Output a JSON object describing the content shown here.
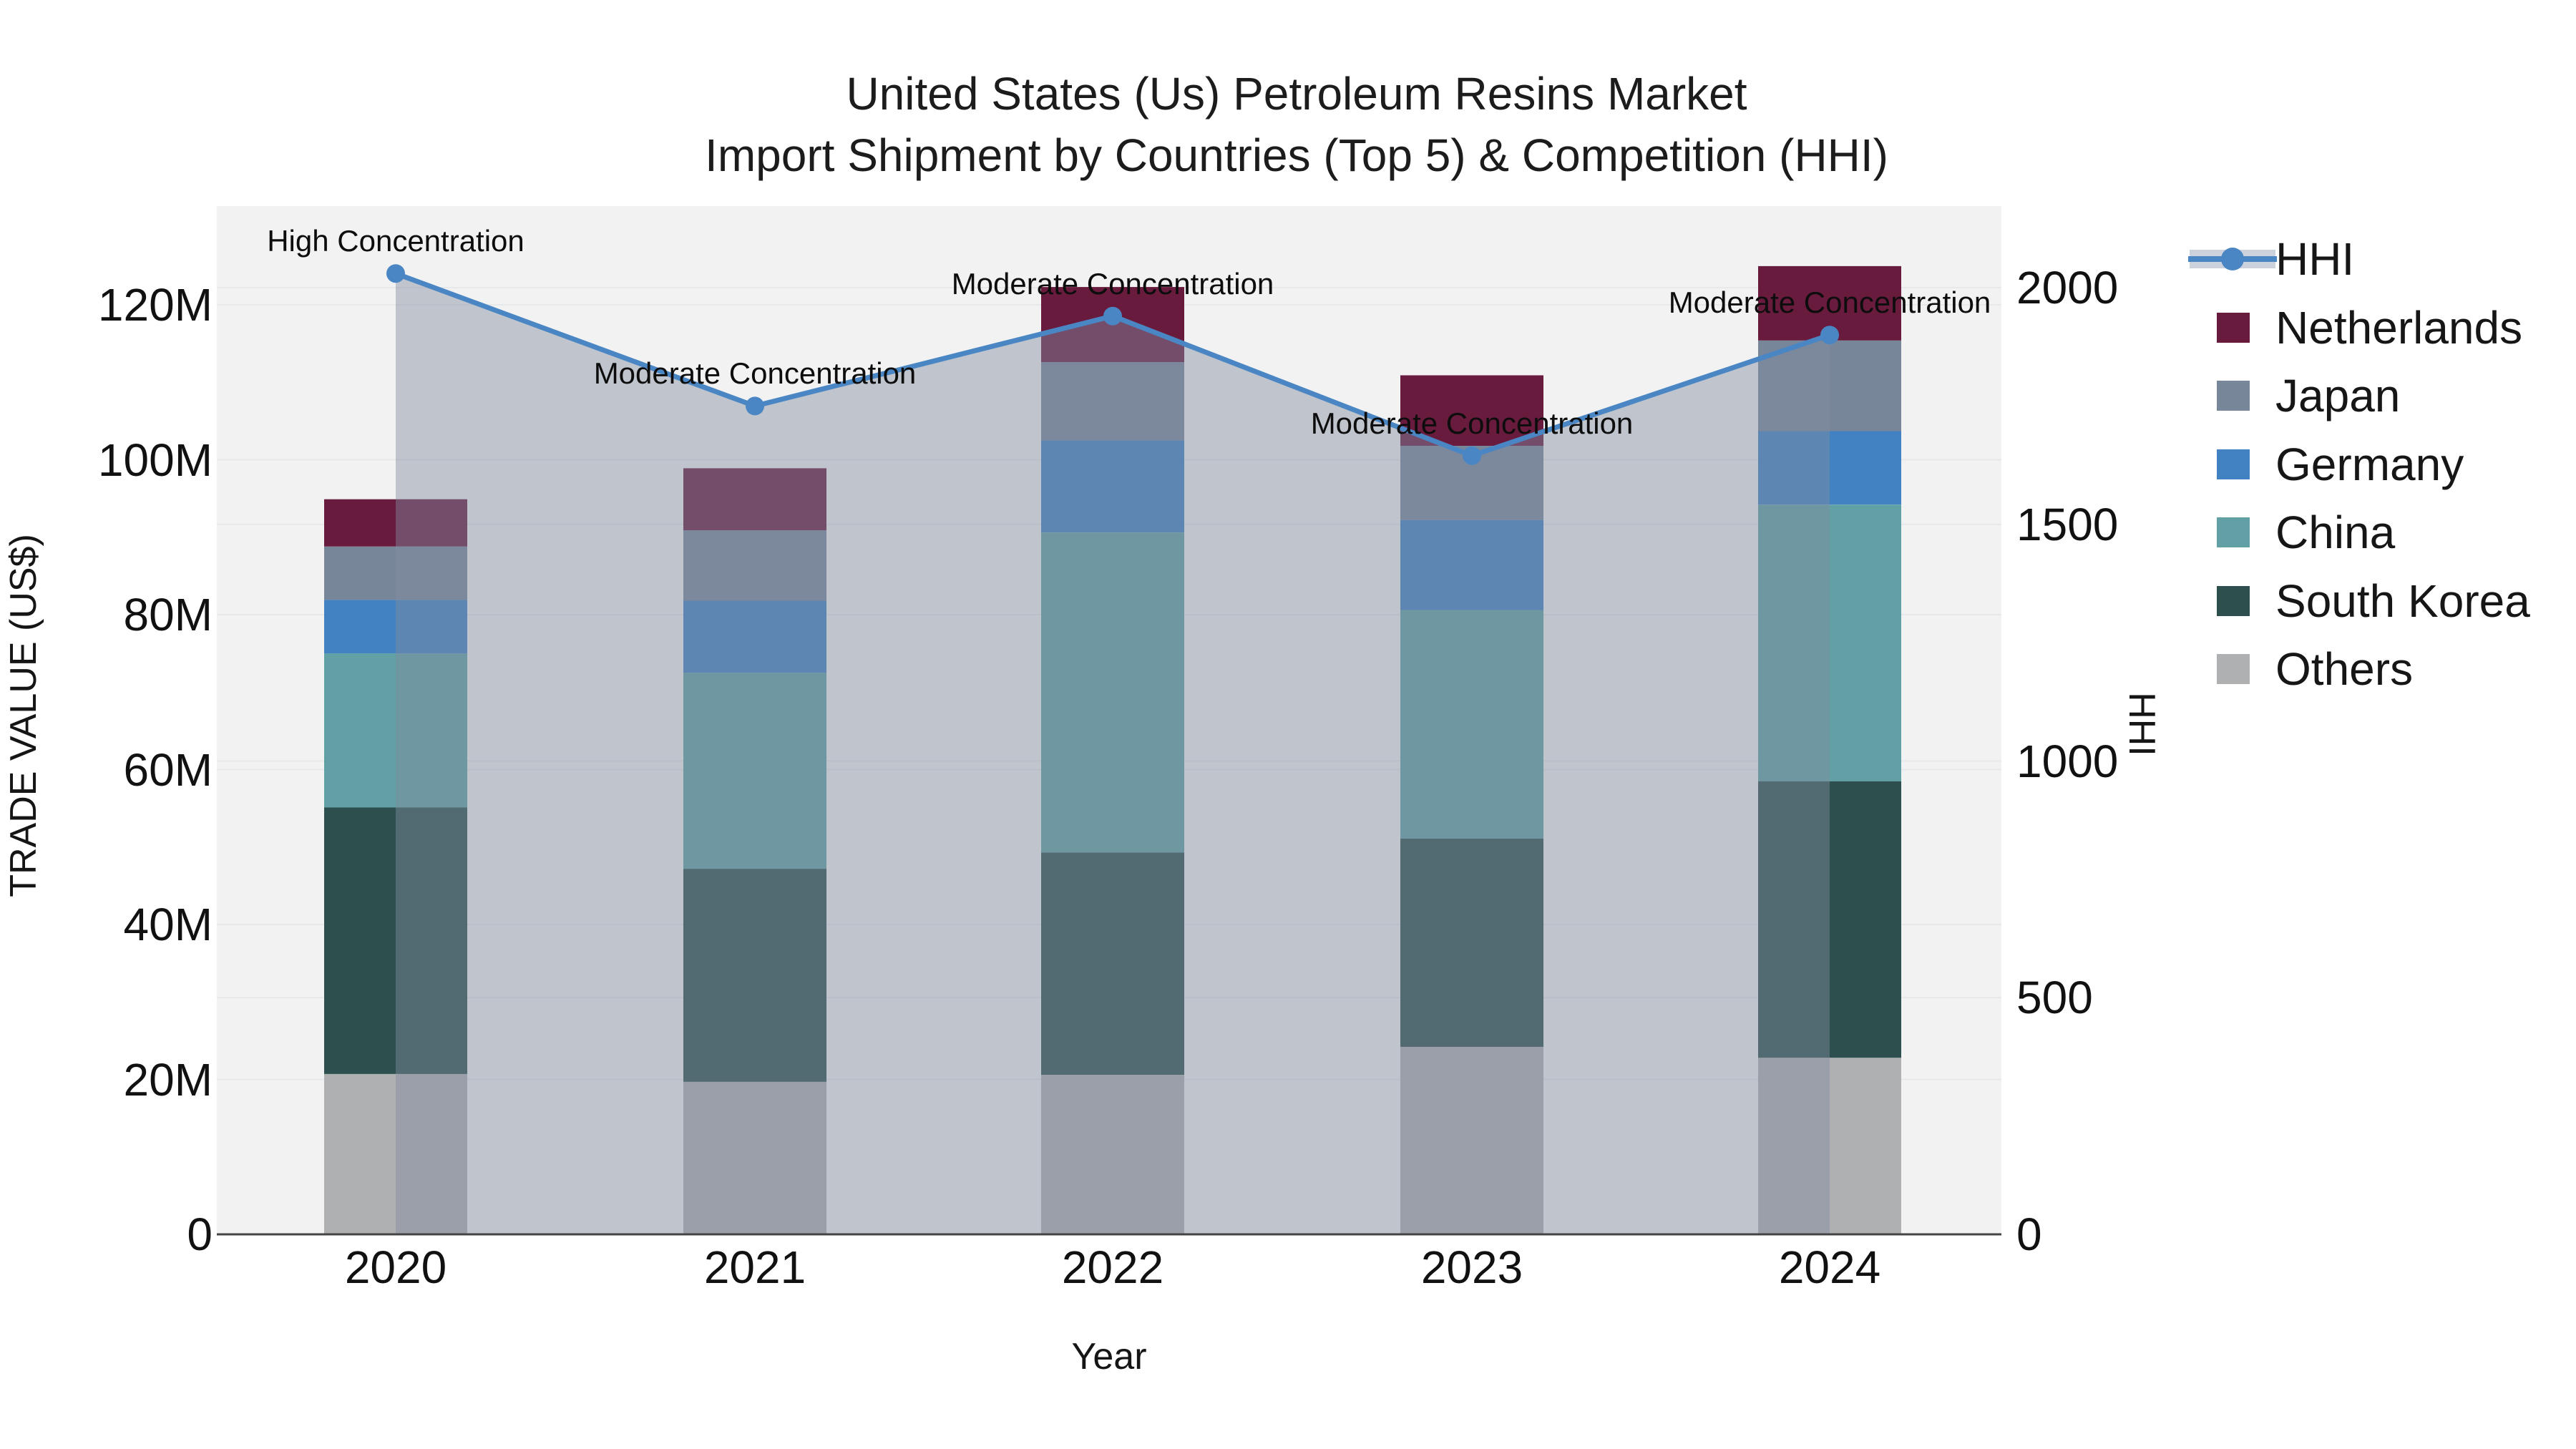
{
  "title": {
    "line1": "United States (Us) Petroleum Resins Market",
    "line2": "Import Shipment by Countries (Top 5) & Competition (HHI)"
  },
  "axes": {
    "y_left": {
      "title": "TRADE VALUE (US$)",
      "ticks": [
        "0",
        "20M",
        "40M",
        "60M",
        "80M",
        "100M",
        "120M"
      ]
    },
    "y_right": {
      "title": "HHI",
      "ticks": [
        "0",
        "500",
        "1000",
        "1500",
        "2000"
      ]
    },
    "x": {
      "title": "Year",
      "ticks": [
        "2020",
        "2021",
        "2022",
        "2023",
        "2024"
      ]
    }
  },
  "legend": {
    "items": [
      {
        "label": "HHI",
        "color": "#4A86C4",
        "type": "line"
      },
      {
        "label": "Netherlands",
        "color": "#691B3E",
        "type": "box"
      },
      {
        "label": "Japan",
        "color": "#78869A",
        "type": "box"
      },
      {
        "label": "Germany",
        "color": "#4282C2",
        "type": "box"
      },
      {
        "label": "China",
        "color": "#61A1A5",
        "type": "box"
      },
      {
        "label": "South Korea",
        "color": "#2D4F4D",
        "type": "box"
      },
      {
        "label": "Others",
        "color": "#AFB0B2",
        "type": "box"
      }
    ]
  },
  "colors": {
    "hhi_line": "#4A86C4",
    "hhi_band_fill": "rgba(128,140,160,0.45)",
    "legend_band": "#CBD2DC",
    "plot_background": "#F2F2F3",
    "gridline": "#E7E8EA",
    "axis_line": "#444444"
  },
  "chart_data": {
    "type": "bar",
    "subtype": "stacked-bars-with-line-overlay",
    "categories": [
      "2020",
      "2021",
      "2022",
      "2023",
      "2024"
    ],
    "unit": "US$ millions",
    "series": [
      {
        "name": "Others",
        "color": "#AFB0B2",
        "values": [
          20.7,
          19.7,
          20.6,
          24.2,
          22.8
        ]
      },
      {
        "name": "South Korea",
        "color": "#2D4F4D",
        "values": [
          34.4,
          27.5,
          28.7,
          26.9,
          35.7
        ]
      },
      {
        "name": "China",
        "color": "#61A1A5",
        "values": [
          19.9,
          25.3,
          41.3,
          29.5,
          35.7
        ]
      },
      {
        "name": "Germany",
        "color": "#4282C2",
        "values": [
          6.9,
          9.3,
          11.9,
          11.6,
          9.5
        ]
      },
      {
        "name": "Japan",
        "color": "#78869A",
        "values": [
          6.9,
          9.1,
          10.1,
          9.6,
          11.7
        ]
      },
      {
        "name": "Netherlands",
        "color": "#691B3E",
        "values": [
          6.1,
          8.0,
          9.7,
          9.1,
          9.6
        ]
      }
    ],
    "bar_totals": [
      94.9,
      98.9,
      122.3,
      110.9,
      125.0
    ],
    "line_series": {
      "name": "HHI",
      "axis": "right",
      "values": [
        2030,
        1750,
        1940,
        1645,
        1900
      ]
    },
    "annotations": [
      {
        "year": "2020",
        "text": "High Concentration"
      },
      {
        "year": "2021",
        "text": "Moderate Concentration"
      },
      {
        "year": "2022",
        "text": "Moderate Concentration"
      },
      {
        "year": "2023",
        "text": "Moderate Concentration"
      },
      {
        "year": "2024",
        "text": "Moderate Concentration"
      }
    ],
    "ylim_left": [
      0,
      133
    ],
    "ylim_right": [
      0,
      2172
    ],
    "grid": true,
    "legend_position": "right",
    "xlabel": "Year",
    "ylabel_left": "TRADE VALUE (US$)",
    "ylabel_right": "HHI"
  }
}
